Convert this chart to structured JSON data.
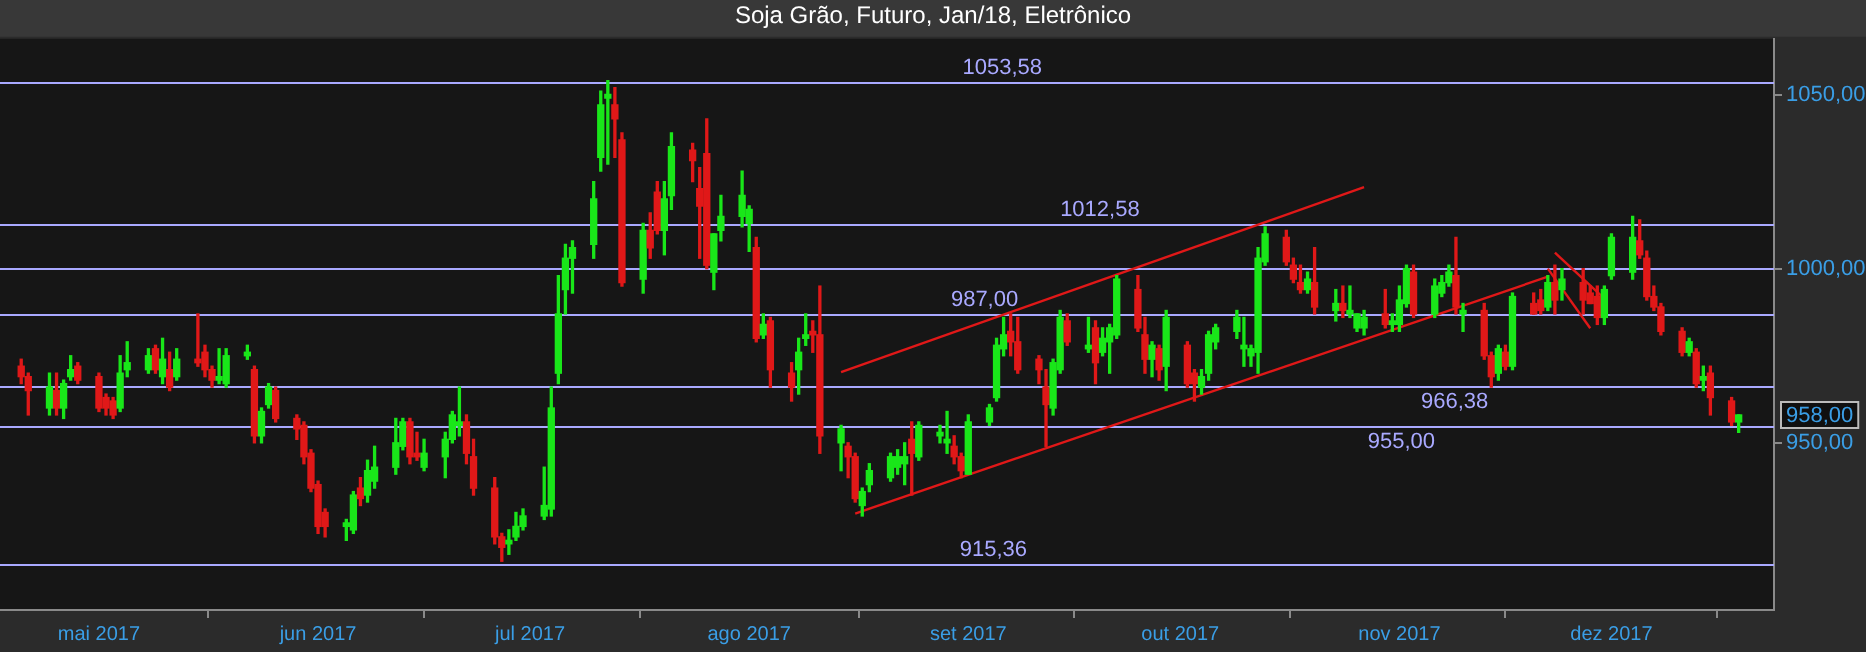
{
  "chart_data": {
    "type": "candlestick",
    "title": "Soja Grão, Futuro, Jan/18, Eletrônico",
    "x": [
      "2017-04-20",
      "2017-04-21",
      "2017-04-24",
      "2017-04-25",
      "2017-04-26",
      "2017-04-27",
      "2017-04-28",
      "2017-05-01",
      "2017-05-02",
      "2017-05-03",
      "2017-05-04",
      "2017-05-05",
      "2017-05-08",
      "2017-05-09",
      "2017-05-10",
      "2017-05-11",
      "2017-05-12",
      "2017-05-15",
      "2017-05-16",
      "2017-05-17",
      "2017-05-18",
      "2017-05-19",
      "2017-05-22",
      "2017-05-23",
      "2017-05-24",
      "2017-05-25",
      "2017-05-26",
      "2017-05-29",
      "2017-05-30",
      "2017-05-31",
      "2017-06-01",
      "2017-06-02",
      "2017-06-05",
      "2017-06-06",
      "2017-06-07",
      "2017-06-08",
      "2017-06-09",
      "2017-06-12",
      "2017-06-13",
      "2017-06-14",
      "2017-06-15",
      "2017-06-16",
      "2017-06-19",
      "2017-06-20",
      "2017-06-21",
      "2017-06-22",
      "2017-06-23",
      "2017-06-26",
      "2017-06-27",
      "2017-06-28",
      "2017-06-29",
      "2017-06-30",
      "2017-07-03",
      "2017-07-04",
      "2017-07-05",
      "2017-07-06",
      "2017-07-07",
      "2017-07-10",
      "2017-07-11",
      "2017-07-12",
      "2017-07-13",
      "2017-07-14",
      "2017-07-17",
      "2017-07-18",
      "2017-07-19",
      "2017-07-20",
      "2017-07-21",
      "2017-07-24",
      "2017-07-25",
      "2017-07-26",
      "2017-07-27",
      "2017-07-28",
      "2017-07-31",
      "2017-08-01",
      "2017-08-02",
      "2017-08-03",
      "2017-08-04",
      "2017-08-07",
      "2017-08-08",
      "2017-08-09",
      "2017-08-10",
      "2017-08-11",
      "2017-08-14",
      "2017-08-15",
      "2017-08-16",
      "2017-08-17",
      "2017-08-18",
      "2017-08-21",
      "2017-08-22",
      "2017-08-23",
      "2017-08-24",
      "2017-08-25",
      "2017-08-28",
      "2017-08-29",
      "2017-08-30",
      "2017-08-31",
      "2017-09-01",
      "2017-09-04",
      "2017-09-05",
      "2017-09-06",
      "2017-09-07",
      "2017-09-08",
      "2017-09-11",
      "2017-09-12",
      "2017-09-13",
      "2017-09-14",
      "2017-09-15",
      "2017-09-18",
      "2017-09-19",
      "2017-09-20",
      "2017-09-21",
      "2017-09-22",
      "2017-09-25",
      "2017-09-26",
      "2017-09-27",
      "2017-09-28",
      "2017-09-29",
      "2017-10-02",
      "2017-10-03",
      "2017-10-04",
      "2017-10-05",
      "2017-10-06",
      "2017-10-09",
      "2017-10-10",
      "2017-10-11",
      "2017-10-12",
      "2017-10-13",
      "2017-10-16",
      "2017-10-17",
      "2017-10-18",
      "2017-10-19",
      "2017-10-20",
      "2017-10-23",
      "2017-10-24",
      "2017-10-25",
      "2017-10-26",
      "2017-10-27",
      "2017-10-30",
      "2017-10-31",
      "2017-11-01",
      "2017-11-02",
      "2017-11-03",
      "2017-11-06",
      "2017-11-07",
      "2017-11-08",
      "2017-11-09",
      "2017-11-10",
      "2017-11-13",
      "2017-11-14",
      "2017-11-15",
      "2017-11-16",
      "2017-11-17",
      "2017-11-20",
      "2017-11-21",
      "2017-11-22",
      "2017-11-23",
      "2017-11-24",
      "2017-11-27",
      "2017-11-28",
      "2017-11-29",
      "2017-11-30",
      "2017-12-01",
      "2017-12-04",
      "2017-12-05",
      "2017-12-06",
      "2017-12-07",
      "2017-12-08",
      "2017-12-11",
      "2017-12-12",
      "2017-12-13",
      "2017-12-14",
      "2017-12-15",
      "2017-12-18",
      "2017-12-19"
    ],
    "ohlc": [
      [
        972,
        974,
        967,
        969
      ],
      [
        969,
        970,
        958,
        965
      ],
      [
        960,
        970,
        958,
        966
      ],
      [
        965,
        970,
        958,
        960
      ],
      [
        960,
        968,
        957,
        967
      ],
      [
        969,
        975,
        968,
        971
      ],
      [
        972,
        973,
        967,
        968
      ],
      [
        969,
        970,
        959,
        960
      ],
      [
        963,
        964,
        958,
        960
      ],
      [
        962,
        963,
        957,
        958
      ],
      [
        960,
        975,
        959,
        970
      ],
      [
        971,
        979,
        969,
        973
      ],
      [
        971,
        977,
        970,
        975
      ],
      [
        977,
        978,
        970,
        971
      ],
      [
        969,
        980,
        967,
        974
      ],
      [
        971,
        976,
        965,
        966
      ],
      [
        969,
        977,
        968,
        974
      ],
      [
        974,
        987,
        972,
        973
      ],
      [
        976,
        978,
        969,
        971
      ],
      [
        971,
        972,
        966,
        968
      ],
      [
        968,
        977,
        967,
        969
      ],
      [
        967,
        977,
        966,
        975
      ],
      [
        975,
        978,
        974,
        976
      ],
      [
        971,
        972,
        950,
        952
      ],
      [
        952,
        960,
        950,
        959
      ],
      [
        961,
        967,
        960,
        966
      ],
      [
        965,
        966,
        956,
        957
      ],
      [
        957,
        958,
        951,
        954
      ],
      [
        955,
        956,
        944,
        946
      ],
      [
        947,
        948,
        936,
        937
      ],
      [
        938,
        939,
        924,
        926
      ],
      [
        930,
        931,
        923,
        926
      ],
      [
        926,
        928,
        922,
        927
      ],
      [
        925,
        936,
        924,
        935
      ],
      [
        937,
        940,
        932,
        934
      ],
      [
        935,
        945,
        933,
        942
      ],
      [
        939,
        949,
        937,
        943
      ],
      [
        943,
        957,
        941,
        950
      ],
      [
        949,
        957,
        948,
        956
      ],
      [
        956,
        957,
        944,
        946
      ],
      [
        947,
        953,
        945,
        946
      ],
      [
        943,
        951,
        942,
        947
      ],
      [
        946,
        953,
        940,
        951
      ],
      [
        951,
        959,
        950,
        958
      ],
      [
        955,
        966,
        952,
        956
      ],
      [
        956,
        958,
        944,
        947
      ],
      [
        946,
        951,
        935,
        937
      ],
      [
        937,
        940,
        921,
        923
      ],
      [
        923,
        924,
        916,
        920
      ],
      [
        921,
        925,
        918,
        922
      ],
      [
        923,
        930,
        922,
        926
      ],
      [
        926,
        931,
        925,
        929
      ],
      [
        929,
        943,
        928,
        932
      ],
      [
        931,
        966,
        929,
        960
      ],
      [
        970,
        998,
        967,
        987
      ],
      [
        994,
        1007,
        987,
        1003
      ],
      [
        1003,
        1008,
        993,
        1006
      ],
      [
        1007,
        1025,
        1003,
        1020
      ],
      [
        1032,
        1051,
        1028,
        1047
      ],
      [
        1049,
        1054,
        1030,
        1050
      ],
      [
        1047,
        1052,
        1032,
        1043
      ],
      [
        1037,
        1039,
        995,
        996
      ],
      [
        997,
        1013,
        993,
        1011
      ],
      [
        1011,
        1016,
        1003,
        1006
      ],
      [
        1022,
        1025,
        1010,
        1011
      ],
      [
        1011,
        1025,
        1004,
        1020
      ],
      [
        1021,
        1039,
        1017,
        1035
      ],
      [
        1034,
        1036,
        1025,
        1031
      ],
      [
        1023,
        1029,
        1003,
        1018
      ],
      [
        1033,
        1043,
        1000,
        1001
      ],
      [
        999,
        1010,
        994,
        1010
      ],
      [
        1011,
        1021,
        1008,
        1015
      ],
      [
        1015,
        1028,
        1012,
        1021
      ],
      [
        1013,
        1018,
        1005,
        1017
      ],
      [
        1006,
        1009,
        979,
        980
      ],
      [
        981,
        987,
        980,
        984
      ],
      [
        985,
        986,
        966,
        971
      ],
      [
        970,
        973,
        962,
        966
      ],
      [
        971,
        980,
        964,
        976
      ],
      [
        980,
        987,
        978,
        981
      ],
      [
        982,
        985,
        976,
        981
      ],
      [
        981,
        995,
        947,
        952
      ],
      [
        950,
        955,
        942,
        954
      ],
      [
        949,
        950,
        940,
        946
      ],
      [
        946,
        947,
        933,
        934
      ],
      [
        932,
        937,
        929,
        936
      ],
      [
        938,
        944,
        936,
        942
      ],
      [
        940,
        947,
        939,
        946
      ],
      [
        943,
        948,
        941,
        946
      ],
      [
        944,
        950,
        938,
        946
      ],
      [
        951,
        956,
        935,
        947
      ],
      [
        946,
        956,
        945,
        955
      ],
      [
        952,
        955,
        950,
        953
      ],
      [
        950,
        959,
        947,
        951
      ],
      [
        949,
        952,
        944,
        946
      ],
      [
        946,
        947,
        940,
        942
      ],
      [
        941,
        958,
        941,
        956
      ],
      [
        956,
        961,
        955,
        960
      ],
      [
        963,
        980,
        962,
        978
      ],
      [
        977,
        986,
        975,
        981
      ],
      [
        982,
        987,
        975,
        979
      ],
      [
        979,
        986,
        970,
        971
      ],
      [
        974,
        975,
        967,
        971
      ],
      [
        966,
        971,
        949,
        961
      ],
      [
        960,
        974,
        958,
        973
      ],
      [
        971,
        988,
        970,
        986
      ],
      [
        985,
        987,
        978,
        979
      ],
      [
        977,
        986,
        976,
        978
      ],
      [
        983,
        985,
        967,
        973
      ],
      [
        976,
        983,
        975,
        980
      ],
      [
        979,
        984,
        970,
        983
      ],
      [
        981,
        998,
        980,
        997
      ],
      [
        994,
        998,
        982,
        983
      ],
      [
        981,
        986,
        970,
        974
      ],
      [
        974,
        979,
        969,
        978
      ],
      [
        977,
        978,
        968,
        971
      ],
      [
        972,
        988,
        965,
        986
      ],
      [
        978,
        979,
        966,
        967
      ],
      [
        970,
        971,
        962,
        967
      ],
      [
        966,
        971,
        964,
        969
      ],
      [
        970,
        982,
        968,
        981
      ],
      [
        979,
        984,
        977,
        983
      ],
      [
        982,
        988,
        980,
        986
      ],
      [
        977,
        986,
        972,
        978
      ],
      [
        975,
        978,
        972,
        977
      ],
      [
        976,
        1006,
        970,
        1003
      ],
      [
        1002,
        1012,
        1001,
        1010
      ],
      [
        1009,
        1011,
        1001,
        1002
      ],
      [
        1001,
        1003,
        996,
        997
      ],
      [
        996,
        1001,
        993,
        994
      ],
      [
        994,
        999,
        993,
        997
      ],
      [
        996,
        1006,
        987,
        989
      ],
      [
        988,
        994,
        985,
        990
      ],
      [
        990,
        995,
        986,
        988
      ],
      [
        987,
        995,
        986,
        988
      ],
      [
        983,
        987,
        982,
        987
      ],
      [
        983,
        988,
        981,
        986
      ],
      [
        987,
        994,
        983,
        984
      ],
      [
        984,
        987,
        982,
        985
      ],
      [
        984,
        995,
        982,
        991
      ],
      [
        990,
        1001,
        989,
        1000
      ],
      [
        999,
        1001,
        986,
        987
      ],
      [
        987,
        997,
        986,
        995
      ],
      [
        993,
        998,
        992,
        996
      ],
      [
        996,
        1001,
        995,
        999
      ],
      [
        998,
        1009,
        987,
        989
      ],
      [
        987,
        990,
        982,
        988
      ],
      [
        988,
        990,
        974,
        975
      ],
      [
        975,
        976,
        966,
        969
      ],
      [
        970,
        978,
        968,
        977
      ],
      [
        976,
        978,
        971,
        972
      ],
      [
        972,
        993,
        971,
        992
      ],
      [
        990,
        993,
        987,
        987
      ],
      [
        991,
        994,
        987,
        988
      ],
      [
        989,
        998,
        988,
        996
      ],
      [
        996,
        1001,
        987,
        991
      ],
      [
        994,
        1000,
        991,
        997
      ],
      [
        996,
        1000,
        987,
        991
      ],
      [
        993,
        995,
        990,
        990
      ],
      [
        992,
        995,
        984,
        986
      ],
      [
        986,
        995,
        984,
        994
      ],
      [
        998,
        1010,
        997,
        1009
      ],
      [
        999,
        1015,
        997,
        1009
      ],
      [
        1008,
        1014,
        1003,
        1004
      ],
      [
        1003,
        1005,
        991,
        992
      ],
      [
        992,
        995,
        988,
        989
      ],
      [
        989,
        990,
        981,
        982
      ],
      [
        982,
        983,
        975,
        976
      ],
      [
        976,
        980,
        975,
        979
      ],
      [
        976,
        977,
        966,
        967
      ],
      [
        968,
        972,
        965,
        969
      ],
      [
        970,
        972,
        958,
        963
      ],
      [
        962,
        963,
        955,
        956
      ],
      [
        956,
        958,
        953,
        958
      ]
    ],
    "series": [
      {
        "type": "line",
        "color": "#e01818",
        "x": [
          "2017-08-14",
          "2017-10-27"
        ],
        "values": [
          970.3,
          1023.4
        ]
      },
      {
        "type": "line",
        "color": "#e01818",
        "x": [
          "2017-08-16",
          "2017-11-22"
        ],
        "values": [
          929.7,
          997.7
        ]
      },
      {
        "type": "line",
        "color": "#e01818",
        "x": [
          "2017-11-23",
          "2017-11-30"
        ],
        "values": [
          1004.6,
          991.4
        ]
      },
      {
        "type": "line",
        "color": "#e01818",
        "x": [
          "2017-11-22",
          "2017-11-28"
        ],
        "values": [
          1000,
          982.9
        ]
      }
    ],
    "ref_lines": [
      {
        "axis": "y",
        "value": 1053.58,
        "label": "1053,58",
        "color": "#a9a9ff"
      },
      {
        "axis": "y",
        "value": 1012.58,
        "label": "1012,58",
        "color": "#a9a9ff"
      },
      {
        "axis": "y",
        "value": 1000,
        "color": "#a9a9ff"
      },
      {
        "axis": "y",
        "value": 987,
        "label": "987,00",
        "color": "#a9a9ff"
      },
      {
        "axis": "y",
        "value": 966.38,
        "label": "966,38",
        "color": "#a9a9ff"
      },
      {
        "axis": "y",
        "value": 955,
        "label": "955,00",
        "color": "#a9a9ff"
      },
      {
        "axis": "y",
        "value": 915.36,
        "label": "915,36",
        "color": "#a9a9ff"
      }
    ],
    "annotations": [
      {
        "text": "958,00",
        "y": 958
      }
    ],
    "xlim": [
      "2017-04-17",
      "2017-12-24"
    ],
    "xticks": [
      {
        "value": "2017-05-01",
        "label": "mai 2017"
      },
      {
        "value": "2017-06-01",
        "label": "jun 2017"
      },
      {
        "value": "2017-07-01",
        "label": "jul 2017"
      },
      {
        "value": "2017-08-01",
        "label": "ago 2017"
      },
      {
        "value": "2017-09-01",
        "label": "set 2017"
      },
      {
        "value": "2017-10-01",
        "label": "out 2017"
      },
      {
        "value": "2017-11-01",
        "label": "nov 2017"
      },
      {
        "value": "2017-12-01",
        "label": "dez 2017"
      }
    ],
    "ylim": [
      902,
      1066
    ],
    "yticks": [
      {
        "value": 950,
        "label": "950,00"
      },
      {
        "value": 1000,
        "label": "1000,00"
      },
      {
        "value": 1050,
        "label": "1050,00"
      }
    ],
    "marker": "none",
    "line_style": "solid",
    "legend": false
  }
}
